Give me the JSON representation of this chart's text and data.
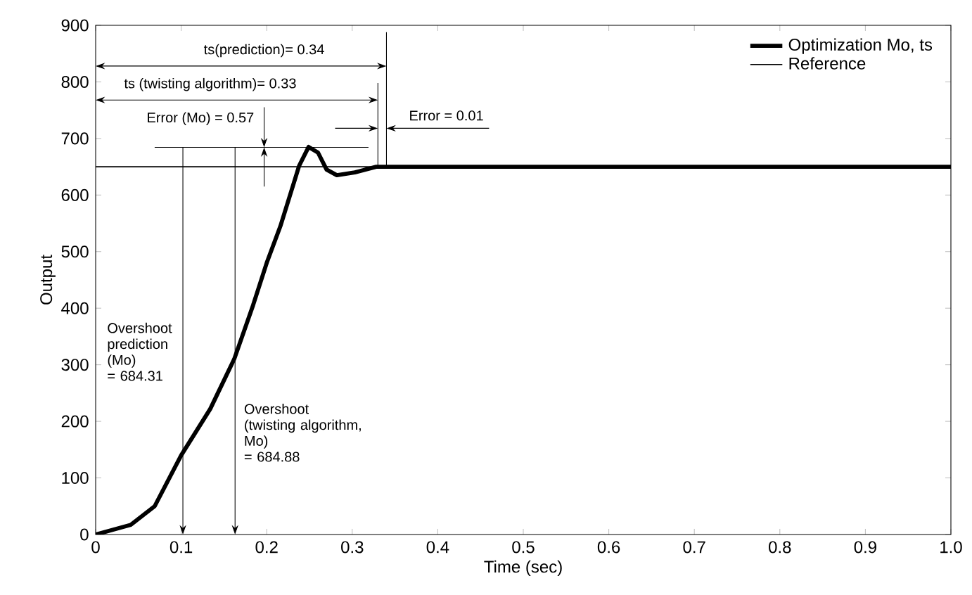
{
  "chart_data": {
    "type": "line",
    "xlabel": "Time (sec)",
    "ylabel": "Output",
    "xlim": [
      0,
      1
    ],
    "ylim": [
      0,
      900
    ],
    "xticks": [
      0,
      0.1,
      0.2,
      0.3,
      0.4,
      0.5,
      0.6,
      0.7,
      0.8,
      0.9,
      {
        "value": 1,
        "label": "1.0"
      }
    ],
    "yticks": [
      0,
      100,
      200,
      300,
      400,
      500,
      600,
      700,
      800,
      900
    ],
    "grid": false,
    "legend": "top right",
    "marker": "none",
    "line_style": "solid",
    "series": [
      {
        "name": "Optimization Mo, ts",
        "color": "#000000",
        "x": [
          0,
          0.041,
          0.069,
          0.1,
          0.134,
          0.162,
          0.184,
          0.2,
          0.216,
          0.238,
          0.249,
          0.26,
          0.27,
          0.282,
          0.303,
          0.328,
          0.4,
          0.6,
          0.8,
          1.0
        ],
        "values": [
          0,
          17,
          50,
          140,
          222,
          310,
          405,
          480,
          545,
          652,
          685,
          675,
          645,
          635,
          640,
          650,
          650,
          650,
          650,
          650
        ]
      },
      {
        "name": "Reference",
        "color": "#000000",
        "x": [
          0,
          1
        ],
        "values": [
          650,
          650
        ]
      }
    ],
    "ref_lines": [
      {
        "axis": "x",
        "value": 0.34
      },
      {
        "axis": "x",
        "value": 0.33
      },
      {
        "axis": "y",
        "value": 684.31
      }
    ],
    "annotations": [
      "ts(prediction)= 0.34",
      "ts (twisting algorithm)= 0.33",
      "Error (Mo) = 0.57",
      {
        "text": "Error = 0.01",
        "x": 0.34,
        "y": 718
      },
      "Overshoot\nprediction\n(Mo)\n= 684.31",
      "Overshoot\n(twisting algorithm,\nMo)\n= 684.88"
    ]
  }
}
